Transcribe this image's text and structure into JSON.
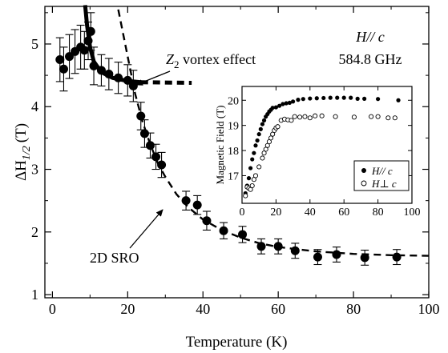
{
  "chart_data": {
    "type": "scatter",
    "xlabel": "Temperature (K)",
    "ylabel_main": "ΔH",
    "ylabel_sub": "1/2",
    "ylabel_unit": "(T)",
    "xlim": [
      -2,
      100
    ],
    "ylim": [
      0.95,
      5.6
    ],
    "xticks": [
      0,
      20,
      40,
      60,
      80,
      100
    ],
    "yticks": [
      1,
      2,
      3,
      4,
      5
    ],
    "annotations": {
      "field_direction": "H// c",
      "frequency": "584.8 GHz",
      "z2_prefix": "Z",
      "z2_sub": "2",
      "z2_rest": " vortex effect",
      "sro": "2D SRO"
    },
    "series": [
      {
        "marker": "filled-circle",
        "points": [
          {
            "x": 2,
            "y": 4.75,
            "err": 0.35
          },
          {
            "x": 3,
            "y": 4.6,
            "err": 0.35
          },
          {
            "x": 4.5,
            "y": 4.8,
            "err": 0.35
          },
          {
            "x": 6,
            "y": 4.88,
            "err": 0.35
          },
          {
            "x": 7.5,
            "y": 4.95,
            "err": 0.35
          },
          {
            "x": 8.5,
            "y": 4.9,
            "err": 0.3
          },
          {
            "x": 9.5,
            "y": 5.05,
            "err": 0.3
          },
          {
            "x": 10.2,
            "y": 5.2,
            "err": 0.3
          },
          {
            "x": 11,
            "y": 4.65,
            "err": 0.3
          },
          {
            "x": 13,
            "y": 4.58,
            "err": 0.25
          },
          {
            "x": 15,
            "y": 4.52,
            "err": 0.25
          },
          {
            "x": 17.5,
            "y": 4.46,
            "err": 0.25
          },
          {
            "x": 20,
            "y": 4.42,
            "err": 0.25
          },
          {
            "x": 21.5,
            "y": 4.33,
            "err": 0.25
          },
          {
            "x": 23.5,
            "y": 3.85,
            "err": 0.22
          },
          {
            "x": 24.5,
            "y": 3.57,
            "err": 0.22
          },
          {
            "x": 26,
            "y": 3.38,
            "err": 0.2
          },
          {
            "x": 27.5,
            "y": 3.2,
            "err": 0.2
          },
          {
            "x": 29,
            "y": 3.07,
            "err": 0.2
          },
          {
            "x": 35.5,
            "y": 2.5,
            "err": 0.15
          },
          {
            "x": 38.5,
            "y": 2.43,
            "err": 0.15
          },
          {
            "x": 41,
            "y": 2.18,
            "err": 0.15
          },
          {
            "x": 45.5,
            "y": 2.02,
            "err": 0.13
          },
          {
            "x": 50.5,
            "y": 1.96,
            "err": 0.13
          },
          {
            "x": 55.5,
            "y": 1.77,
            "err": 0.12
          },
          {
            "x": 60,
            "y": 1.77,
            "err": 0.12
          },
          {
            "x": 64.5,
            "y": 1.7,
            "err": 0.12
          },
          {
            "x": 70.5,
            "y": 1.6,
            "err": 0.12
          },
          {
            "x": 75.5,
            "y": 1.64,
            "err": 0.12
          },
          {
            "x": 83,
            "y": 1.59,
            "err": 0.12
          },
          {
            "x": 91.5,
            "y": 1.6,
            "err": 0.12
          }
        ]
      },
      {
        "marker": "thick-solid-line",
        "points": [
          {
            "x": 8.7,
            "y": 5.62
          },
          {
            "x": 9.2,
            "y": 5.3
          },
          {
            "x": 10,
            "y": 4.95
          },
          {
            "x": 11,
            "y": 4.72
          },
          {
            "x": 13,
            "y": 4.55
          },
          {
            "x": 16,
            "y": 4.46
          },
          {
            "x": 20,
            "y": 4.41
          },
          {
            "x": 23.5,
            "y": 4.39
          }
        ]
      },
      {
        "marker": "thick-dashed-line",
        "points": [
          {
            "x": 23.5,
            "y": 4.39
          },
          {
            "x": 30,
            "y": 4.385
          },
          {
            "x": 37,
            "y": 4.38
          }
        ]
      },
      {
        "marker": "dashed-line",
        "points": [
          {
            "x": 17.5,
            "y": 5.55
          },
          {
            "x": 19,
            "y": 5.1
          },
          {
            "x": 20.5,
            "y": 4.65
          },
          {
            "x": 22,
            "y": 4.2
          },
          {
            "x": 24,
            "y": 3.75
          },
          {
            "x": 26,
            "y": 3.4
          },
          {
            "x": 28,
            "y": 3.1
          },
          {
            "x": 30,
            "y": 2.88
          },
          {
            "x": 33,
            "y": 2.6
          },
          {
            "x": 36,
            "y": 2.4
          },
          {
            "x": 40,
            "y": 2.2
          },
          {
            "x": 45,
            "y": 2.03
          },
          {
            "x": 50,
            "y": 1.91
          },
          {
            "x": 55,
            "y": 1.82
          },
          {
            "x": 60,
            "y": 1.76
          },
          {
            "x": 70,
            "y": 1.69
          },
          {
            "x": 80,
            "y": 1.65
          },
          {
            "x": 90,
            "y": 1.63
          },
          {
            "x": 100,
            "y": 1.62
          }
        ]
      }
    ],
    "inset": {
      "xlabel": "",
      "ylabel": "Magnetic Field (T)",
      "xlim": [
        0,
        100
      ],
      "ylim": [
        15.9,
        20.55
      ],
      "xticks": [
        0,
        20,
        40,
        60,
        80,
        100
      ],
      "yticks": [
        17,
        18,
        19,
        20
      ],
      "legend_placement": "bottom-right",
      "series": [
        {
          "name": "H// c",
          "marker": "filled-circle",
          "points": [
            {
              "x": 2,
              "y": 16.3
            },
            {
              "x": 3,
              "y": 16.6
            },
            {
              "x": 4,
              "y": 16.9
            },
            {
              "x": 5,
              "y": 17.3
            },
            {
              "x": 6,
              "y": 17.65
            },
            {
              "x": 7,
              "y": 17.9
            },
            {
              "x": 8,
              "y": 18.2
            },
            {
              "x": 9,
              "y": 18.4
            },
            {
              "x": 10,
              "y": 18.65
            },
            {
              "x": 11,
              "y": 18.85
            },
            {
              "x": 12,
              "y": 19.05
            },
            {
              "x": 13,
              "y": 19.2
            },
            {
              "x": 14,
              "y": 19.35
            },
            {
              "x": 15,
              "y": 19.45
            },
            {
              "x": 16,
              "y": 19.55
            },
            {
              "x": 17,
              "y": 19.62
            },
            {
              "x": 18,
              "y": 19.7
            },
            {
              "x": 20,
              "y": 19.72
            },
            {
              "x": 22,
              "y": 19.78
            },
            {
              "x": 24,
              "y": 19.85
            },
            {
              "x": 26,
              "y": 19.88
            },
            {
              "x": 28,
              "y": 19.9
            },
            {
              "x": 30,
              "y": 19.95
            },
            {
              "x": 33,
              "y": 20.02
            },
            {
              "x": 36,
              "y": 20.05
            },
            {
              "x": 40,
              "y": 20.07
            },
            {
              "x": 44,
              "y": 20.08
            },
            {
              "x": 48,
              "y": 20.09
            },
            {
              "x": 52,
              "y": 20.1
            },
            {
              "x": 56,
              "y": 20.1
            },
            {
              "x": 60,
              "y": 20.1
            },
            {
              "x": 64,
              "y": 20.1
            },
            {
              "x": 68,
              "y": 20.06
            },
            {
              "x": 72,
              "y": 20.06
            },
            {
              "x": 80,
              "y": 20.05
            },
            {
              "x": 92,
              "y": 20.0
            }
          ]
        },
        {
          "name": "H⊥ c",
          "marker": "open-circle",
          "points": [
            {
              "x": 2,
              "y": 16.2
            },
            {
              "x": 3,
              "y": 16.55
            },
            {
              "x": 4,
              "y": 16.5
            },
            {
              "x": 5,
              "y": 16.45
            },
            {
              "x": 6,
              "y": 16.6
            },
            {
              "x": 7,
              "y": 16.85
            },
            {
              "x": 8,
              "y": 17.0
            },
            {
              "x": 10,
              "y": 17.35
            },
            {
              "x": 12,
              "y": 17.7
            },
            {
              "x": 13,
              "y": 17.9
            },
            {
              "x": 14,
              "y": 18.05
            },
            {
              "x": 15,
              "y": 18.2
            },
            {
              "x": 16,
              "y": 18.35
            },
            {
              "x": 17,
              "y": 18.5
            },
            {
              "x": 18,
              "y": 18.65
            },
            {
              "x": 19,
              "y": 18.8
            },
            {
              "x": 20,
              "y": 18.9
            },
            {
              "x": 21,
              "y": 18.95
            },
            {
              "x": 23,
              "y": 19.2
            },
            {
              "x": 25,
              "y": 19.25
            },
            {
              "x": 27,
              "y": 19.22
            },
            {
              "x": 29,
              "y": 19.2
            },
            {
              "x": 31,
              "y": 19.35
            },
            {
              "x": 34,
              "y": 19.33
            },
            {
              "x": 37,
              "y": 19.35
            },
            {
              "x": 40,
              "y": 19.3
            },
            {
              "x": 43,
              "y": 19.38
            },
            {
              "x": 47,
              "y": 19.38
            },
            {
              "x": 55,
              "y": 19.35
            },
            {
              "x": 66,
              "y": 19.33
            },
            {
              "x": 76,
              "y": 19.35
            },
            {
              "x": 80,
              "y": 19.35
            },
            {
              "x": 86,
              "y": 19.3
            },
            {
              "x": 90,
              "y": 19.3
            }
          ]
        }
      ]
    }
  }
}
